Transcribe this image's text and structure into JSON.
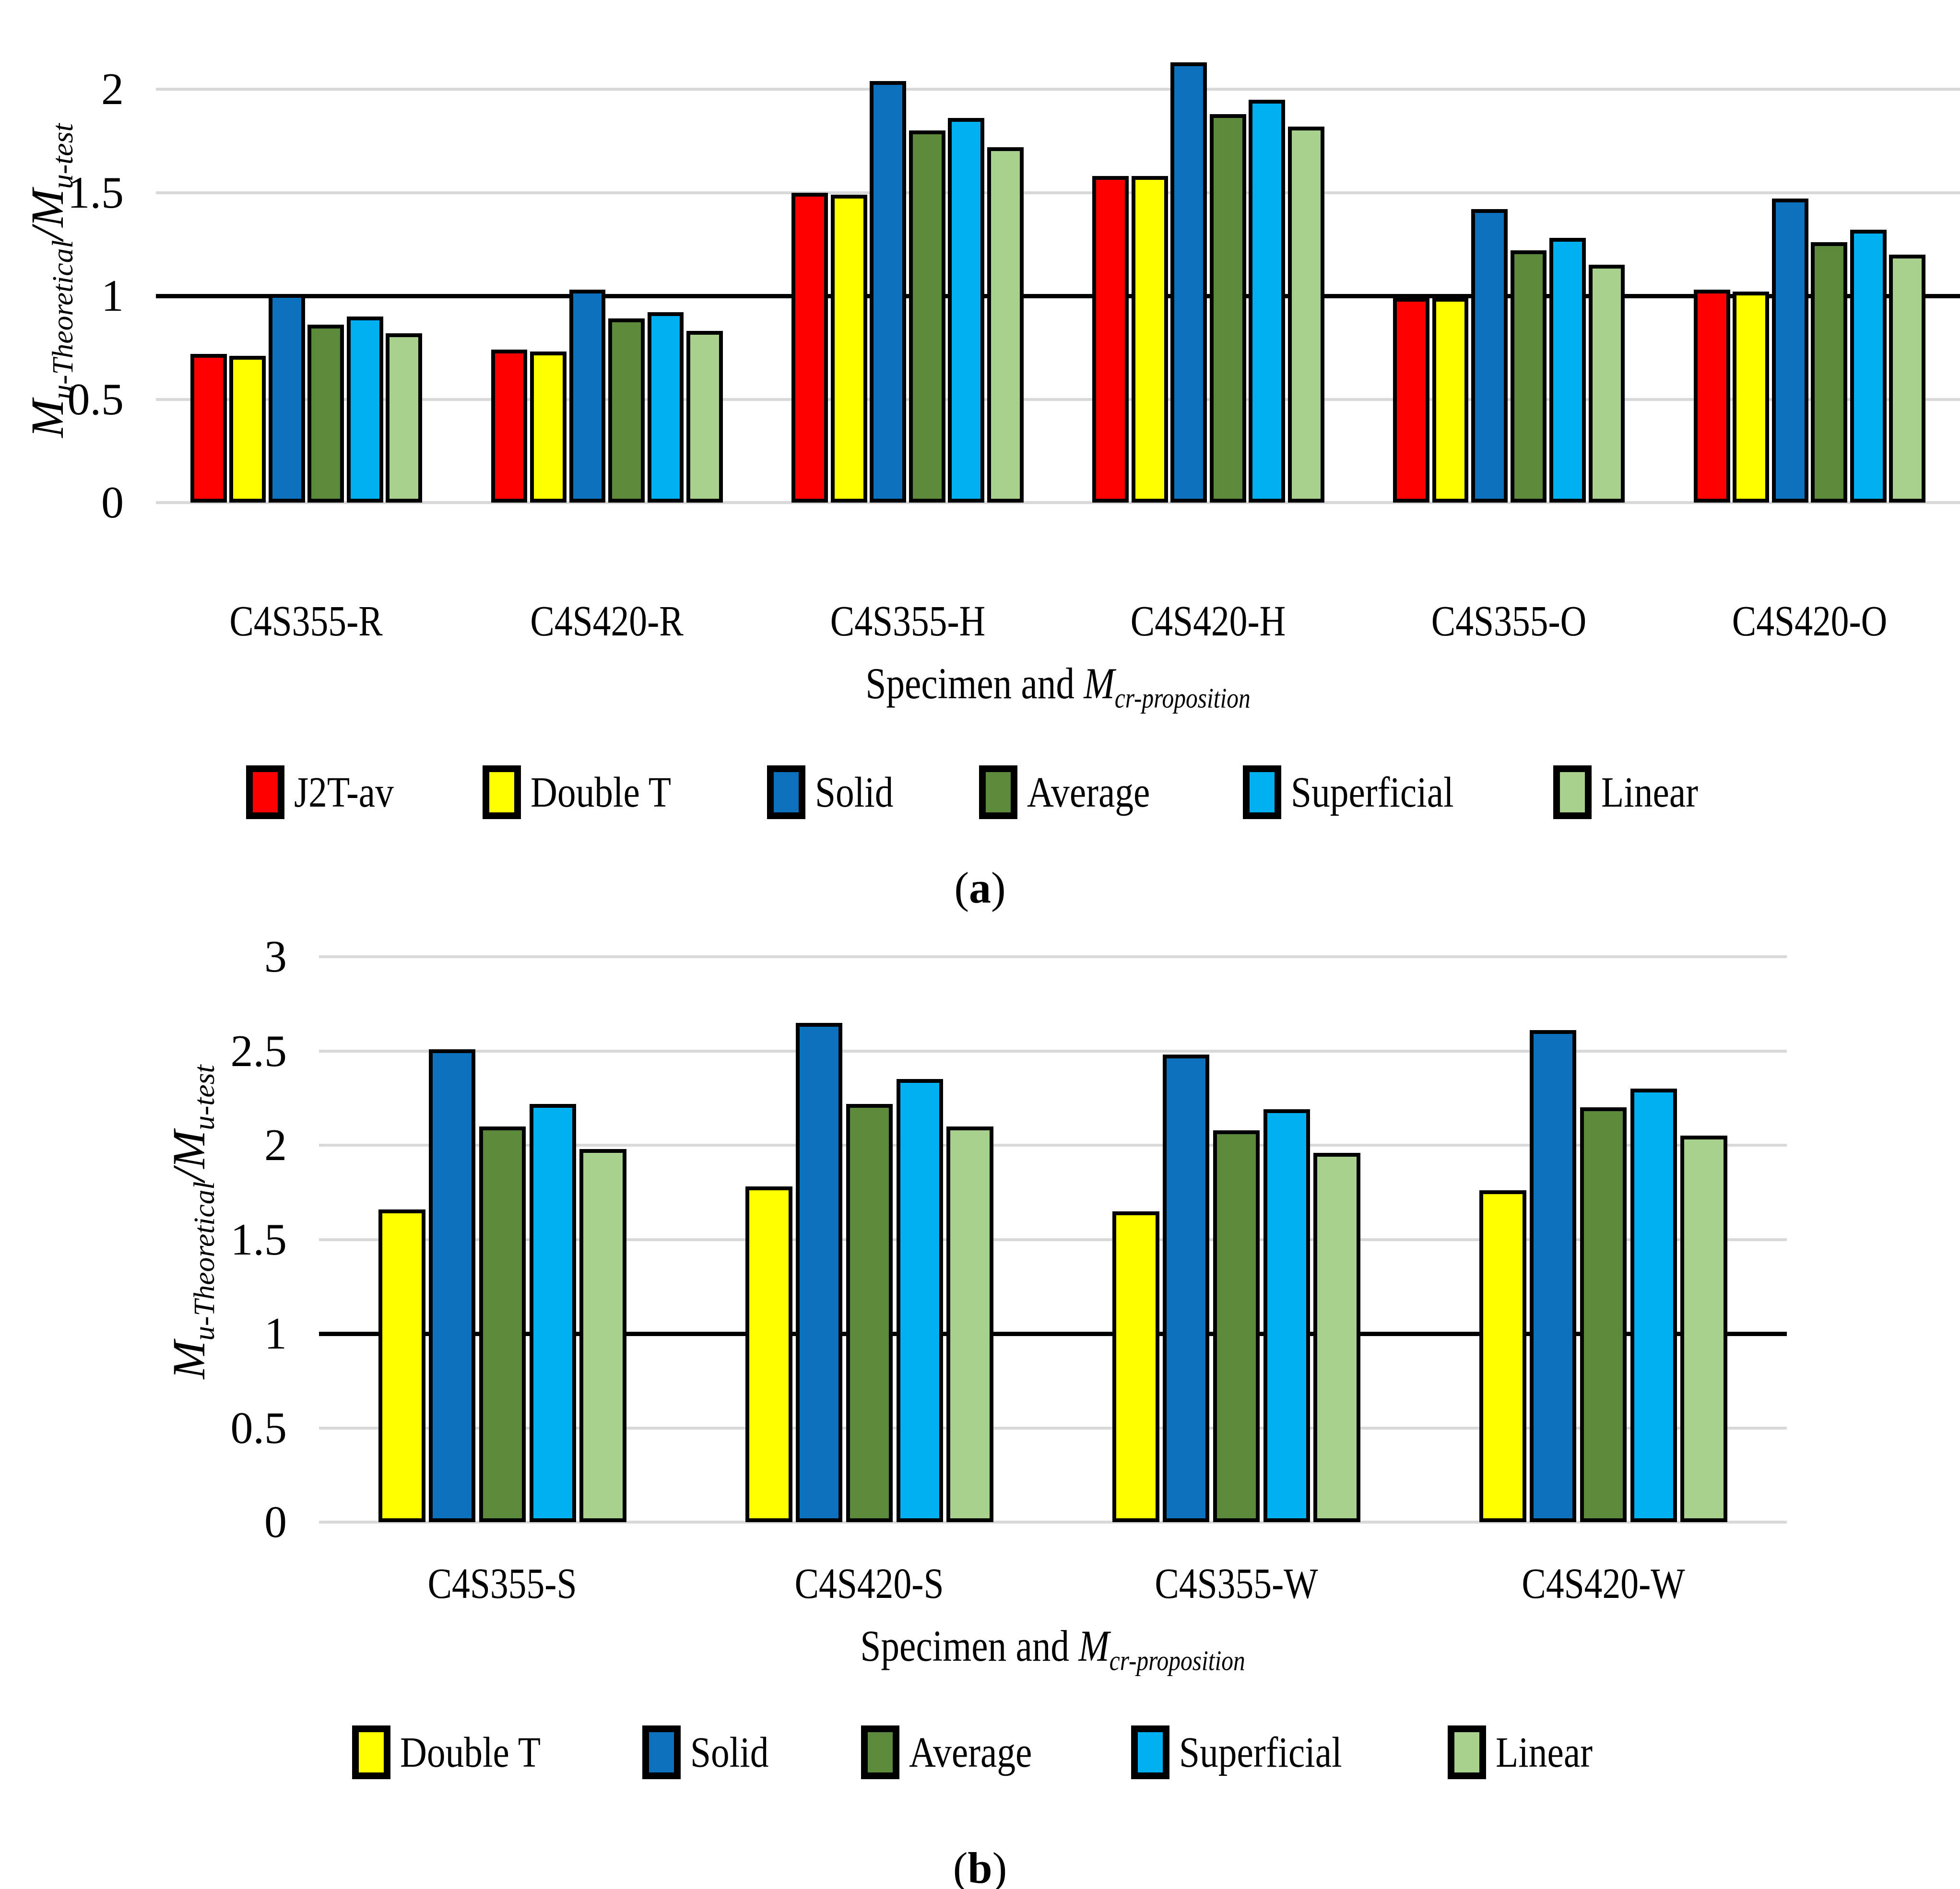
{
  "captions": {
    "a_open": "(",
    "a_letter": "a",
    "a_close": ")",
    "b_open": "(",
    "b_letter": "b",
    "b_close": ")"
  },
  "chart_data": [
    {
      "id": "a",
      "type": "bar",
      "title": "",
      "categories": [
        "C4S355-R",
        "C4S420-R",
        "C4S355-H",
        "C4S420-H",
        "C4S355-O",
        "C4S420-O"
      ],
      "series": [
        {
          "name": "J2T-av",
          "color": "#FF0000",
          "values": [
            0.72,
            0.74,
            1.5,
            1.58,
            0.99,
            1.03
          ]
        },
        {
          "name": "Double T",
          "color": "#FFFF00",
          "values": [
            0.71,
            0.73,
            1.49,
            1.58,
            0.99,
            1.02
          ]
        },
        {
          "name": "Solid",
          "color": "#0D72BD",
          "values": [
            1.01,
            1.03,
            2.04,
            2.13,
            1.42,
            1.47
          ]
        },
        {
          "name": "Average",
          "color": "#5B8A3C",
          "values": [
            0.86,
            0.89,
            1.8,
            1.88,
            1.22,
            1.26
          ]
        },
        {
          "name": "Superficial",
          "color": "#00B0F0",
          "values": [
            0.9,
            0.92,
            1.86,
            1.95,
            1.28,
            1.32
          ]
        },
        {
          "name": "Linear",
          "color": "#A9D18E",
          "values": [
            0.82,
            0.83,
            1.72,
            1.82,
            1.15,
            1.2
          ]
        }
      ],
      "ylim": [
        0,
        2
      ],
      "yticks": [
        {
          "v": 0,
          "t": "0"
        },
        {
          "v": 0.5,
          "t": "0.5"
        },
        {
          "v": 1,
          "t": "1"
        },
        {
          "v": 1.5,
          "t": "1.5"
        },
        {
          "v": 2,
          "t": "2"
        }
      ],
      "ref_line": 1,
      "grid": true,
      "legend_position": "bottom",
      "xlabel_prefix": "Specimen and ",
      "xlabel_m": "M",
      "xlabel_sub": "cr-proposition",
      "ylabel_m1": "M",
      "ylabel_sub1": "u-Theoretical",
      "ylabel_sep": "/",
      "ylabel_m2": "M",
      "ylabel_sub2": "u-test"
    },
    {
      "id": "b",
      "type": "bar",
      "title": "",
      "categories": [
        "C4S355-S",
        "C4S420-S",
        "C4S355-W",
        "C4S420-W"
      ],
      "series": [
        {
          "name": "Double T",
          "color": "#FFFF00",
          "values": [
            1.66,
            1.78,
            1.65,
            1.76
          ]
        },
        {
          "name": "Solid",
          "color": "#0D72BD",
          "values": [
            2.51,
            2.65,
            2.48,
            2.61
          ]
        },
        {
          "name": "Average",
          "color": "#5B8A3C",
          "values": [
            2.1,
            2.22,
            2.08,
            2.2
          ]
        },
        {
          "name": "Superficial",
          "color": "#00B0F0",
          "values": [
            2.22,
            2.35,
            2.19,
            2.3
          ]
        },
        {
          "name": "Linear",
          "color": "#A9D18E",
          "values": [
            1.98,
            2.1,
            1.96,
            2.05
          ]
        }
      ],
      "ylim": [
        0,
        3
      ],
      "yticks": [
        {
          "v": 0,
          "t": "0"
        },
        {
          "v": 0.5,
          "t": "0.5"
        },
        {
          "v": 1,
          "t": "1"
        },
        {
          "v": 1.5,
          "t": "1.5"
        },
        {
          "v": 2,
          "t": "2"
        },
        {
          "v": 2.5,
          "t": "2.5"
        },
        {
          "v": 3,
          "t": "3"
        }
      ],
      "ref_line": 1,
      "grid": true,
      "legend_position": "bottom",
      "xlabel_prefix": "Specimen and ",
      "xlabel_m": "M",
      "xlabel_sub": "cr-proposition",
      "ylabel_m1": "M",
      "ylabel_sub1": "u-Theoretical",
      "ylabel_sep": "/",
      "ylabel_m2": "M",
      "ylabel_sub2": "u-test"
    }
  ]
}
